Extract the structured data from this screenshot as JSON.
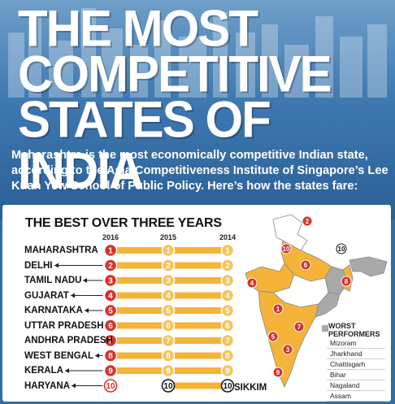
{
  "title_lines": [
    "THE MOST",
    "COMPETITIVE",
    "STATES OF INDIA"
  ],
  "intro": "Maharashtra is the most economically competitive Indian state, according to the Asia Competitiveness Institute of Singapore’s Lee Kuan Yew School of Public Policy. Here’s how the states fare:",
  "chart_data": {
    "type": "line",
    "title": "THE BEST OVER THREE YEARS",
    "x": [
      "2016",
      "2015",
      "2014"
    ],
    "series": [
      {
        "name": "MAHARASHTRA",
        "values": [
          1,
          1,
          1
        ]
      },
      {
        "name": "DELHI",
        "values": [
          2,
          2,
          2
        ]
      },
      {
        "name": "TAMIL NADU",
        "values": [
          3,
          3,
          3
        ]
      },
      {
        "name": "GUJARAT",
        "values": [
          4,
          4,
          4
        ]
      },
      {
        "name": "KARNATAKA",
        "values": [
          5,
          5,
          5
        ]
      },
      {
        "name": "UTTAR PRADESH",
        "values": [
          6,
          6,
          6
        ]
      },
      {
        "name": "ANDHRA PRADESH",
        "values": [
          7,
          7,
          7
        ]
      },
      {
        "name": "WEST BENGAL",
        "values": [
          8,
          8,
          8
        ]
      },
      {
        "name": "KERALA",
        "values": [
          9,
          9,
          9
        ]
      },
      {
        "name": "HARYANA",
        "values": [
          10,
          null,
          null
        ]
      },
      {
        "name": "SIKKIM",
        "values": [
          null,
          10,
          10
        ]
      }
    ],
    "state_arrows": [
      "",
      "",
      "",
      "",
      "",
      "",
      "",
      "",
      "",
      ""
    ],
    "ylim": [
      1,
      10
    ],
    "colors": {
      "highlight": "#d6322b",
      "muted": "#f3c55d",
      "line": "#f5b33a",
      "special": "#111111"
    }
  },
  "map": {
    "state_numbers": [
      "1",
      "2",
      "3",
      "4",
      "5",
      "6",
      "7",
      "8",
      "9",
      "10",
      "10"
    ],
    "colors": {
      "top_states": "#f5b33a",
      "worst": "#a9a9a9",
      "other": "#ffffff",
      "outline": "#888888"
    }
  },
  "legend": {
    "title": "WORST PERFORMERS",
    "items": [
      "Mizoram",
      "Jharkhand",
      "Chattisgarh",
      "Bihar",
      "Nagaland",
      "Assam"
    ]
  }
}
